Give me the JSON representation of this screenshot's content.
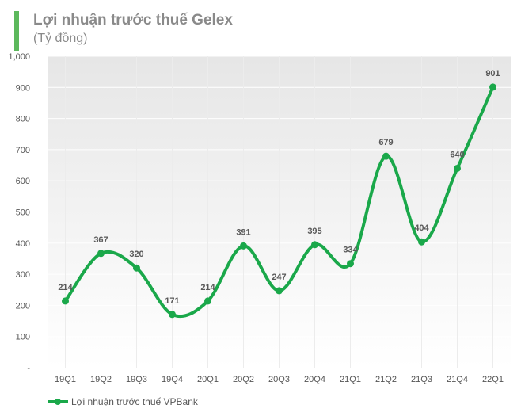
{
  "chart_data": {
    "type": "line",
    "title": "Lợi nhuận trước thuế Gelex",
    "subtitle": "(Tỷ đồng)",
    "categories": [
      "19Q1",
      "19Q2",
      "19Q3",
      "19Q4",
      "20Q1",
      "20Q2",
      "20Q3",
      "20Q4",
      "21Q1",
      "21Q2",
      "21Q3",
      "21Q4",
      "22Q1"
    ],
    "series": [
      {
        "name": "Lợi nhuận trước thuế VPBank",
        "values": [
          214,
          367,
          320,
          171,
          214,
          391,
          247,
          395,
          334,
          679,
          404,
          640,
          901
        ]
      }
    ],
    "ylim": [
      0,
      1000
    ],
    "yticks": [
      {
        "value": 0,
        "label": "-"
      },
      {
        "value": 100,
        "label": "100"
      },
      {
        "value": 200,
        "label": "200"
      },
      {
        "value": 300,
        "label": "300"
      },
      {
        "value": 400,
        "label": "400"
      },
      {
        "value": 500,
        "label": "500"
      },
      {
        "value": 600,
        "label": "600"
      },
      {
        "value": 700,
        "label": "700"
      },
      {
        "value": 800,
        "label": "800"
      },
      {
        "value": 900,
        "label": "900"
      },
      {
        "value": 1000,
        "label": "1,000"
      }
    ],
    "grid": true,
    "legend": "bottom-left",
    "colors": {
      "series": "#1aa84a",
      "accent_bar": "#5cb85c",
      "title": "#8a8a8a"
    }
  }
}
